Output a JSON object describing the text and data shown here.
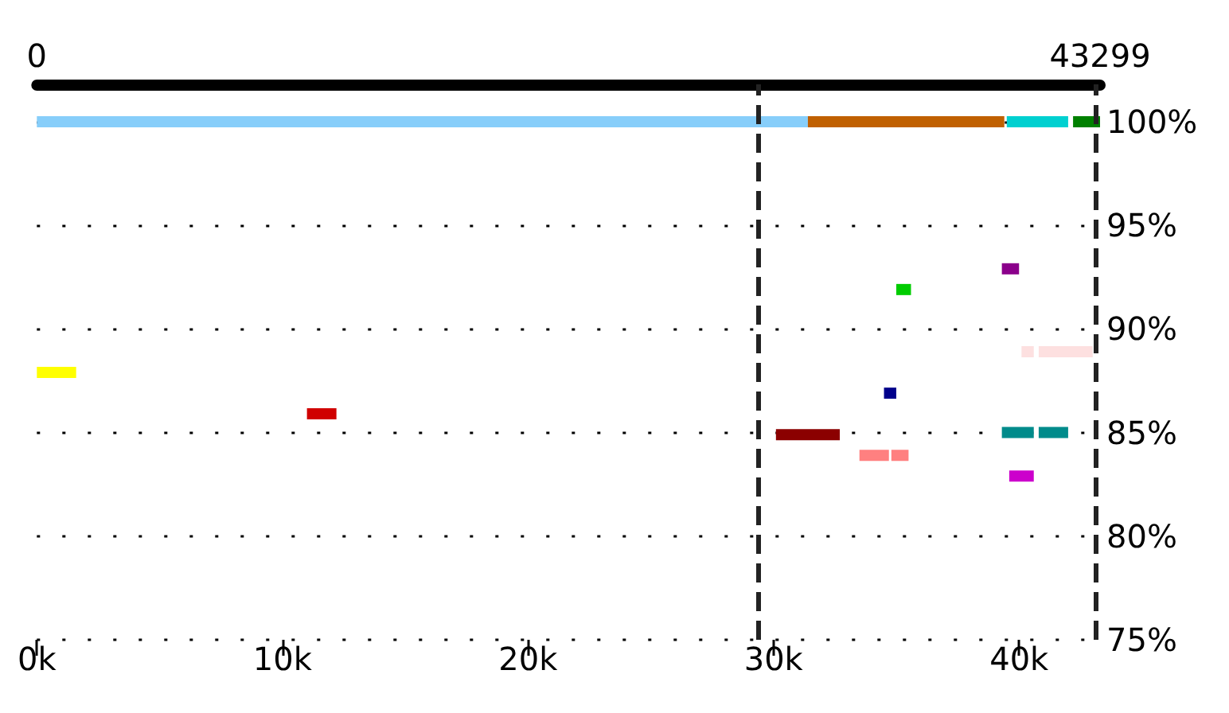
{
  "chart_data": {
    "type": "line",
    "series": [
      {
        "color": "#87cefa",
        "x": [
          0,
          31400
        ],
        "values": [
          100,
          100
        ]
      },
      {
        "color": "#c06000",
        "x": [
          31400,
          39400
        ],
        "values": [
          100,
          100
        ]
      },
      {
        "color": "#00d0d0",
        "x": [
          39500,
          42000
        ],
        "values": [
          100,
          100
        ]
      },
      {
        "color": "#008000",
        "x": [
          42200,
          43299
        ],
        "values": [
          100,
          100
        ]
      },
      {
        "color": "#8b008b",
        "x": [
          39300,
          40000
        ],
        "values": [
          92.9,
          92.9
        ]
      },
      {
        "color": "#00cc00",
        "x": [
          35000,
          35600
        ],
        "values": [
          91.9,
          91.9
        ]
      },
      {
        "color": "#fde0e0",
        "x": [
          40100,
          40600,
          40700,
          40800,
          43000
        ],
        "values": [
          88.9,
          88.9,
          null,
          88.9,
          88.9
        ]
      },
      {
        "color": "#ffff00",
        "x": [
          0,
          1600
        ],
        "values": [
          87.9,
          87.9
        ]
      },
      {
        "color": "#00008b",
        "x": [
          34500,
          35000
        ],
        "values": [
          86.9,
          86.9
        ]
      },
      {
        "color": "#d00000",
        "x": [
          11000,
          12200
        ],
        "values": [
          85.9,
          85.9
        ]
      },
      {
        "color": "#8b0000",
        "x": [
          30100,
          32700
        ],
        "values": [
          84.9,
          84.9
        ]
      },
      {
        "color": "#008b8b",
        "x": [
          39300,
          40600,
          40700,
          40800,
          42000
        ],
        "values": [
          85,
          85,
          null,
          85,
          85
        ]
      },
      {
        "color": "#ff8080",
        "x": [
          33500,
          34700,
          34750,
          34800,
          35500
        ],
        "values": [
          83.9,
          83.9,
          null,
          83.9,
          83.9
        ]
      },
      {
        "color": "#cc00cc",
        "x": [
          39600,
          40600
        ],
        "values": [
          82.9,
          82.9
        ]
      }
    ],
    "xlim": [
      0,
      43299
    ],
    "xticks": [
      {
        "value": 0,
        "label": "0k"
      },
      {
        "value": 10000,
        "label": "10k"
      },
      {
        "value": 20000,
        "label": "20k"
      },
      {
        "value": 30000,
        "label": "30k"
      },
      {
        "value": 40000,
        "label": "40k"
      }
    ],
    "x2lim": [
      0,
      43299
    ],
    "x2ticks": [
      0,
      43299
    ],
    "ylim": [
      75,
      101.8
    ],
    "yticks": [
      {
        "value": 75,
        "label": "75%"
      },
      {
        "value": 80,
        "label": "80%"
      },
      {
        "value": 85,
        "label": "85%"
      },
      {
        "value": 90,
        "label": "90%"
      },
      {
        "value": 95,
        "label": "95%"
      },
      {
        "value": 100,
        "label": "100%"
      }
    ],
    "ref_lines": [
      {
        "axis": "x",
        "value": 29400,
        "color": "#222222",
        "line_style": "dashed"
      },
      {
        "axis": "x",
        "value": 43100,
        "color": "#222222",
        "line_style": "dashed"
      }
    ],
    "grid": "y",
    "marker": "none",
    "line_style": "solid"
  }
}
